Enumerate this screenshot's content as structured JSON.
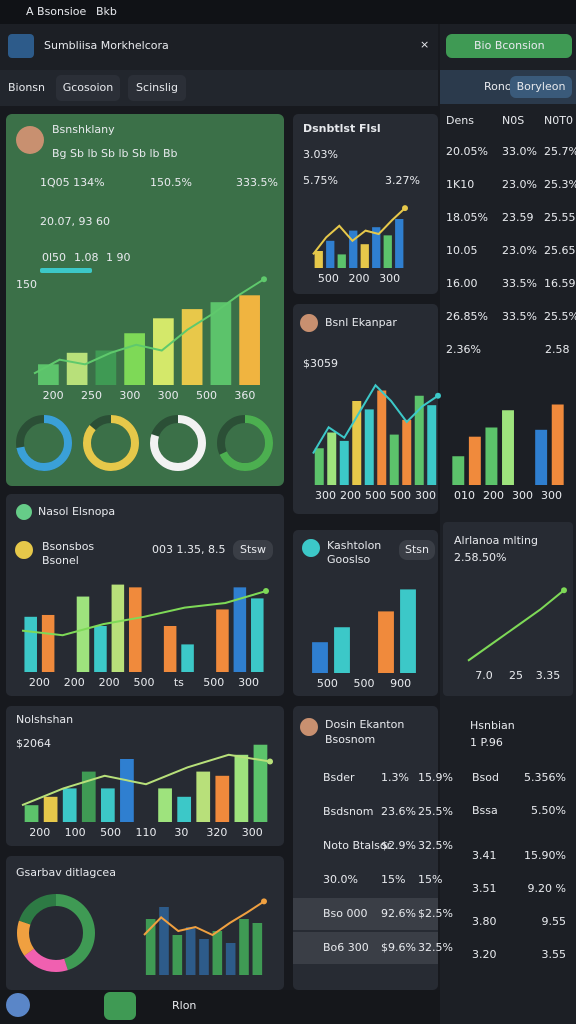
{
  "status": {
    "app": "A Bsonsioe",
    "label": "Bkb"
  },
  "header": {
    "title": "Sumbliisa Morkhelcora"
  },
  "tabs": [
    "Bionsn",
    "Gcosoion",
    "Scinslig"
  ],
  "main": {
    "name": "Bsnshklany",
    "sub": "Bg Sb lb Sb lb Sb lb Bb",
    "stats": [
      "1Q05 134%",
      "150.5%",
      "333.5%"
    ],
    "big": "20.07, 93 60",
    "legend": [
      "0l50",
      "1.08",
      "1 90"
    ],
    "axis_label": "150",
    "chart": {
      "ylim": [
        0,
        100
      ],
      "bars": [
        18,
        28,
        30,
        45,
        58,
        66,
        72,
        78
      ],
      "bar_colors": [
        "#5cc36b",
        "#b8e07a",
        "#3f9a54",
        "#7ed957",
        "#d4e86a",
        "#e8c84a",
        "#5cc36b",
        "#f0b440"
      ],
      "line": [
        10,
        22,
        18,
        28,
        35,
        30,
        48,
        62,
        78,
        92
      ],
      "line_color": "#5fc96c",
      "xlabels": [
        "200",
        "250",
        "300",
        "300",
        "500",
        "360"
      ]
    },
    "donuts": [
      {
        "value": 72,
        "color": "#3aa0d8"
      },
      {
        "value": 86,
        "color": "#e6c84a"
      },
      {
        "value": 80,
        "color": "#f2f2f2"
      },
      {
        "value": 68,
        "color": "#4caf50"
      }
    ]
  },
  "c1": {
    "title": "Dsnbtlst Flsl",
    "value": "3.03%",
    "stats": [
      "5.75%",
      "3.27%"
    ],
    "chart": {
      "ylim": [
        0,
        100
      ],
      "bars": [
        25,
        40,
        20,
        55,
        35,
        60,
        48,
        72
      ],
      "bar_colors": [
        "#e6c84a",
        "#2f7fd0",
        "#5cc36b",
        "#2f7fd0",
        "#e6c84a",
        "#2f7fd0",
        "#5cc36b",
        "#2f7fd0"
      ],
      "line": [
        20,
        45,
        62,
        40,
        55,
        50,
        70,
        88
      ],
      "line_color": "#e6c84a",
      "xlabels": [
        "500",
        "200",
        "300"
      ]
    }
  },
  "c2": {
    "title": "Bsnl Ekanpar",
    "value": "$3059",
    "chart": {
      "ylim": [
        0,
        100
      ],
      "bars": [
        35,
        50,
        42,
        80,
        72,
        90,
        48,
        62,
        85,
        76
      ],
      "bar_colors": [
        "#5cc36b",
        "#9ee37d",
        "#3cc8c8",
        "#e6c84a",
        "#3cc8c8",
        "#f08a3c",
        "#5cc36b",
        "#f08a3c",
        "#5cc36b",
        "#3cc8c8"
      ],
      "line": [
        30,
        55,
        45,
        70,
        95,
        80,
        60,
        75,
        85
      ],
      "line_color": "#3cc8c8",
      "xlabels": [
        "300",
        "200",
        "500",
        "500",
        "300"
      ]
    }
  },
  "c3": {
    "title": "Nasol Elsnopa",
    "sub": "Bsonsbos",
    "sub2": "Bsonel",
    "value": "003 1.35, 8.5",
    "button": "Stsw",
    "chart": {
      "ylim": [
        0,
        100
      ],
      "bars": [
        60,
        62,
        0,
        82,
        50,
        95,
        92,
        0,
        50,
        30,
        0,
        68,
        92,
        80
      ],
      "bar_colors": [
        "#3cc8c8",
        "#f08a3c",
        "#5cc36b",
        "#9ee37d",
        "#3cc8c8",
        "#b8e07a",
        "#f08a3c",
        "#2f7fd0",
        "#f08a3c",
        "#3cc8c8",
        "#2f7fd0",
        "#f08a3c",
        "#2f7fd0",
        "#3cc8c8"
      ],
      "line": [
        45,
        40,
        52,
        60,
        70,
        75,
        88
      ],
      "line_color": "#7ed957",
      "xlabels": [
        "200",
        "200",
        "200",
        "500",
        "ts",
        "500",
        "300"
      ]
    }
  },
  "c4": {
    "title": "Kashtolon",
    "sub": "Gooslso",
    "button": "Stsn",
    "chart": {
      "ylim": [
        0,
        100
      ],
      "bars": [
        35,
        52,
        0,
        70,
        95
      ],
      "bar_colors": [
        "#2f7fd0",
        "#3cc8c8",
        "#2f7fd0",
        "#f08a3c",
        "#3cc8c8"
      ],
      "xlabels": [
        "500",
        "500",
        "900"
      ]
    }
  },
  "c5": {
    "title": "Nolshshan",
    "value": "$2064",
    "chart": {
      "ylim": [
        0,
        100
      ],
      "bars": [
        20,
        30,
        40,
        60,
        40,
        75,
        0,
        40,
        30,
        60,
        55,
        80,
        92
      ],
      "bar_colors": [
        "#5cc36b",
        "#e6c84a",
        "#3cc8c8",
        "#3f9a54",
        "#3cc8c8",
        "#2f7fd0",
        "#2f7fd0",
        "#9ee37d",
        "#3cc8c8",
        "#b8e07a",
        "#f08a3c",
        "#9ee37d",
        "#5cc36b"
      ],
      "line": [
        20,
        40,
        55,
        45,
        65,
        80,
        72
      ],
      "line_color": "#b8e07a",
      "xlabels": [
        "200",
        "100",
        "500",
        "110",
        "30",
        "320",
        "300"
      ]
    }
  },
  "c6": {
    "title": "Gsarbav ditlagcea",
    "donut": {
      "segments": [
        45,
        20,
        15,
        20
      ],
      "colors": [
        "#3f9a54",
        "#f060b0",
        "#f0a040",
        "#2d7a44"
      ]
    },
    "chart": {
      "ylim": [
        0,
        100
      ],
      "bars": [
        70,
        85,
        50,
        60,
        45,
        55,
        40,
        70,
        65
      ],
      "bar_colors": [
        "#3f9a54",
        "#2d5b8a",
        "#3f9a54",
        "#2d5b8a",
        "#2d5b8a",
        "#3f9a54",
        "#2d5b8a",
        "#3f9a54",
        "#3f9a54"
      ],
      "line": [
        50,
        72,
        55,
        60,
        50,
        65,
        78,
        92
      ],
      "line_color": "#f0a040"
    }
  },
  "list": {
    "title": "Dosin Ekanton",
    "sub": "Bsosnom",
    "rows": [
      [
        "Bsder",
        "1.3%",
        "15.9%"
      ],
      [
        "Bsdsnom",
        "23.6%",
        "25.5%"
      ],
      [
        "Noto Btalsor",
        "$2.9%",
        "32.5%"
      ],
      [
        "30.0%",
        "15%",
        "15%"
      ],
      [
        "Bso 000",
        "92.6%",
        "$2.5%"
      ],
      [
        "Bo6 300",
        "$9.6%",
        "32.5%"
      ]
    ]
  },
  "side": {
    "title": "Bio Bconsion",
    "tabs": [
      "Rono",
      "Boryleon"
    ],
    "columns": [
      "Dens",
      "N0S",
      "N0T0"
    ],
    "rows": [
      [
        "20.05%",
        "33.0%",
        "25.7%"
      ],
      [
        "1K10",
        "23.0%",
        "25.3%"
      ],
      [
        "18.05%",
        "23.59",
        "25.55"
      ],
      [
        "10.05",
        "23.0%",
        "25.65"
      ],
      [
        "16.00",
        "33.5%",
        "16.59"
      ],
      [
        "26.85%",
        "33.5%",
        "25.5%"
      ]
    ],
    "value": "2.36%",
    "value2": "2.58",
    "chart": {
      "ylim": [
        0,
        100
      ],
      "bars": [
        25,
        42,
        50,
        65,
        0,
        48,
        70
      ],
      "bar_colors": [
        "#5cc36b",
        "#f08a3c",
        "#5cc36b",
        "#9ee37d",
        "#2f7fd0",
        "#2f7fd0",
        "#f08a3c"
      ],
      "xlabels": [
        "010",
        "200",
        "300",
        "300"
      ]
    },
    "line_title": "Alrlanoa mlting",
    "line_value": "2.58.50%",
    "line_chart": {
      "ylim": [
        0,
        100
      ],
      "line": [
        5,
        25,
        45,
        65,
        88
      ],
      "line_color": "#7ed957",
      "xlabels": [
        "7.0",
        "25",
        "3.35"
      ]
    },
    "list_title": "Hsnbian",
    "list_sub": "1 P.96",
    "list": [
      [
        "Bsod",
        "5.356%"
      ],
      [
        "Bssa",
        "5.50%"
      ],
      [
        "3.41",
        "15.90%"
      ],
      [
        "3.51",
        "9.20 %"
      ],
      [
        "3.80",
        "9.55"
      ],
      [
        "3.20",
        "3.55"
      ]
    ]
  },
  "bottom": {
    "label": "Rlon"
  }
}
